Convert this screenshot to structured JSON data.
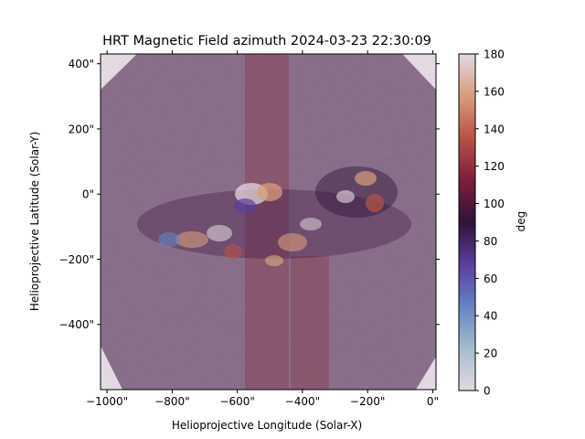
{
  "title": "HRT Magnetic Field azimuth 2024-03-23 22:30:09",
  "x_axis": {
    "label": "Helioprojective Longitude (Solar-X)",
    "ticks": [
      {
        "value": -1000,
        "label": "−1000\""
      },
      {
        "value": -800,
        "label": "−800\""
      },
      {
        "value": -600,
        "label": "−600\""
      },
      {
        "value": -400,
        "label": "−400\""
      },
      {
        "value": -200,
        "label": "−200\""
      },
      {
        "value": 0,
        "label": "0\""
      }
    ],
    "range": [
      -1020,
      10
    ]
  },
  "y_axis": {
    "label": "Helioprojective Latitude (Solar-Y)",
    "ticks": [
      {
        "value": 400,
        "label": "400\""
      },
      {
        "value": 200,
        "label": "200\""
      },
      {
        "value": 0,
        "label": "0\""
      },
      {
        "value": -200,
        "label": "−200\""
      },
      {
        "value": -400,
        "label": "−400\""
      }
    ],
    "range": [
      -600,
      430
    ]
  },
  "colorbar": {
    "label": "deg",
    "range": [
      0,
      180
    ],
    "ticks": [
      {
        "value": 0,
        "label": "0"
      },
      {
        "value": 20,
        "label": "20"
      },
      {
        "value": 40,
        "label": "40"
      },
      {
        "value": 60,
        "label": "60"
      },
      {
        "value": 80,
        "label": "80"
      },
      {
        "value": 100,
        "label": "100"
      },
      {
        "value": 120,
        "label": "120"
      },
      {
        "value": 140,
        "label": "140"
      },
      {
        "value": 160,
        "label": "160"
      },
      {
        "value": 180,
        "label": "180"
      }
    ],
    "colormap": "twilight_shifted",
    "stops": [
      "#e2d9e2",
      "#a5bdcc",
      "#6483c1",
      "#5a3ea0",
      "#2f1436",
      "#7a1f3b",
      "#b75246",
      "#d89c7b",
      "#e2d9e2"
    ]
  },
  "map": {
    "background": "#e2d9e2"
  }
}
